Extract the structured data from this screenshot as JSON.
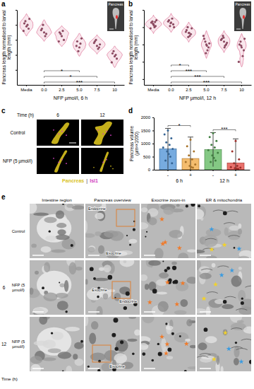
{
  "chart_data": [
    {
      "type": "violin",
      "title": "a",
      "x_label": "NFP µmol/l, 6 h",
      "y_label": "Pancreas length normalised to larval length (mm)",
      "categories": [
        "Media",
        "0.0",
        "2.5",
        "5.0",
        "7.5",
        "10"
      ],
      "values": [
        [
          0.098,
          0.102,
          0.095,
          0.105,
          0.1,
          0.092,
          0.108
        ],
        [
          0.09,
          0.095,
          0.088,
          0.1,
          0.085,
          0.093
        ],
        [
          0.085,
          0.09,
          0.08,
          0.088,
          0.092,
          0.078
        ],
        [
          0.07,
          0.078,
          0.082,
          0.065,
          0.075,
          0.072
        ],
        [
          0.072,
          0.078,
          0.07,
          0.08,
          0.068,
          0.076,
          0.074
        ],
        [
          0.058,
          0.062,
          0.055,
          0.065,
          0.06,
          0.05
        ]
      ],
      "color": "#e0789c",
      "ylim": [
        0.02,
        0.12
      ],
      "yticks": [
        0.04,
        0.06,
        0.08,
        0.1,
        0.12
      ],
      "tick_labels": "x",
      "annotations": [
        {
          "text": "Pancreas"
        },
        {
          "text": "*",
          "from": "0.0",
          "to": "5.0"
        },
        {
          "text": "*",
          "from": "0.0",
          "to": "7.5"
        },
        {
          "text": "***",
          "from": "0.0",
          "to": "10"
        }
      ]
    },
    {
      "type": "violin",
      "title": "b",
      "x_label": "NFP µmol/l, 12 h",
      "y_label": "Pancreas length normalised to larval length (mm)",
      "categories": [
        "Media",
        "0.0",
        "2.5",
        "5.0",
        "7.5",
        "10"
      ],
      "values": [
        [
          0.115,
          0.118,
          0.112,
          0.12,
          0.11,
          0.108,
          0.122,
          0.116,
          0.113,
          0.119
        ],
        [
          0.118,
          0.122,
          0.115,
          0.112,
          0.125,
          0.12,
          0.11,
          0.117
        ],
        [
          0.1,
          0.105,
          0.098,
          0.11,
          0.095,
          0.102,
          0.108,
          0.093,
          0.1
        ],
        [
          0.08,
          0.09,
          0.075,
          0.085,
          0.07,
          0.095,
          0.082,
          0.065,
          0.078
        ],
        [
          0.085,
          0.09,
          0.08,
          0.095,
          0.078,
          0.088,
          0.083,
          0.092,
          0.075
        ],
        [
          0.075,
          0.08,
          0.07,
          0.085,
          0.06,
          0.05,
          0.09,
          0.078
        ]
      ],
      "color": "#e0789c",
      "ylim": [
        0.01,
        0.14
      ],
      "yticks": [
        0.02,
        0.05,
        0.08,
        0.11,
        0.14
      ],
      "tick_labels": "x",
      "annotations": [
        {
          "text": "Pancreas"
        },
        {
          "text": "*",
          "from": "0.0",
          "to": "2.5"
        },
        {
          "text": "***",
          "from": "0.0",
          "to": "5.0"
        },
        {
          "text": "***",
          "from": "0.0",
          "to": "7.5"
        },
        {
          "text": "***",
          "from": "0.0",
          "to": "10"
        }
      ]
    },
    {
      "type": "bar",
      "title": "d",
      "y_label": "Pancreas volume (µm³×1000)",
      "categories": [
        "-",
        "+",
        "-",
        "+"
      ],
      "x_groups": [
        "6 h",
        "12 h"
      ],
      "values": [
        800,
        430,
        770,
        260
      ],
      "errors": [
        780,
        820,
        650,
        920
      ],
      "colors": [
        "#4a8fd4",
        "#f0a53c",
        "#5bb55b",
        "#e2413b"
      ],
      "points": [
        [
          1500,
          1350,
          1200,
          1050,
          950,
          850,
          800,
          700,
          600,
          500,
          350,
          250
        ],
        [
          1150,
          900,
          700,
          550,
          400,
          300,
          200,
          150,
          100,
          80
        ],
        [
          1400,
          1250,
          1100,
          950,
          850,
          750,
          650,
          550,
          450,
          350,
          300
        ],
        [
          1100,
          700,
          400,
          250,
          150,
          100,
          80,
          60,
          50,
          40
        ]
      ],
      "ylim": [
        0,
        2000
      ],
      "yticks": [
        0,
        500,
        1000,
        1500,
        2000
      ],
      "annotations": [
        {
          "text": "*",
          "from": 0,
          "to": 1
        },
        {
          "text": "***",
          "from": 2,
          "to": 3
        }
      ]
    }
  ],
  "panel_c": {
    "title": "c",
    "time_label": "Time (h)",
    "times": [
      6,
      12
    ],
    "rows": [
      "Control",
      "NFP (5 µmol/l)"
    ],
    "legend": [
      {
        "text": "Pancreas",
        "color": "#d9c21e"
      },
      {
        "text": "|",
        "color": "#888888"
      },
      {
        "text": "Isl1",
        "color": "#d040c0"
      }
    ]
  },
  "panel_e": {
    "title": "e",
    "time_label": "Time (h)",
    "columns": [
      "Intestine region",
      "Pancreas overview",
      "Exocrine zoom-in",
      "ER & mitochondria"
    ],
    "rows": [
      {
        "condition": "Control",
        "overview_labels": [
          "Endocrine",
          "Exocrine"
        ]
      },
      {
        "time": 6,
        "condition": "NFP (5 µmol/l)",
        "overview_labels": [
          "Exocrine",
          "Endocrine"
        ]
      },
      {
        "time": 12,
        "condition": "NFP (5 µmol/l)",
        "overview_labels": [
          "Exocrine"
        ]
      }
    ]
  }
}
